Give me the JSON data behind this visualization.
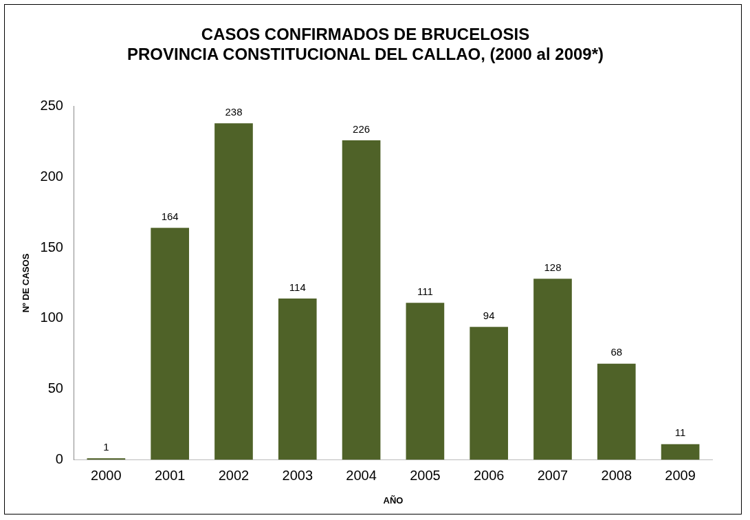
{
  "chart_data": {
    "type": "bar",
    "title": "CASOS CONFIRMADOS DE BRUCELOSIS\nPROVINCIA CONSTITUCIONAL DEL CALLAO, (2000 al 2009*)",
    "xlabel": "AÑO",
    "ylabel": "Nº DE CASOS",
    "categories": [
      "2000",
      "2001",
      "2002",
      "2003",
      "2004",
      "2005",
      "2006",
      "2007",
      "2008",
      "2009"
    ],
    "values": [
      1,
      164,
      238,
      114,
      226,
      111,
      94,
      128,
      68,
      11
    ],
    "color": "#4f6228",
    "ylim": [
      0,
      250
    ],
    "yticks": [
      0,
      50,
      100,
      150,
      200,
      250
    ],
    "grid": false,
    "legend": false,
    "data_labels": true
  }
}
